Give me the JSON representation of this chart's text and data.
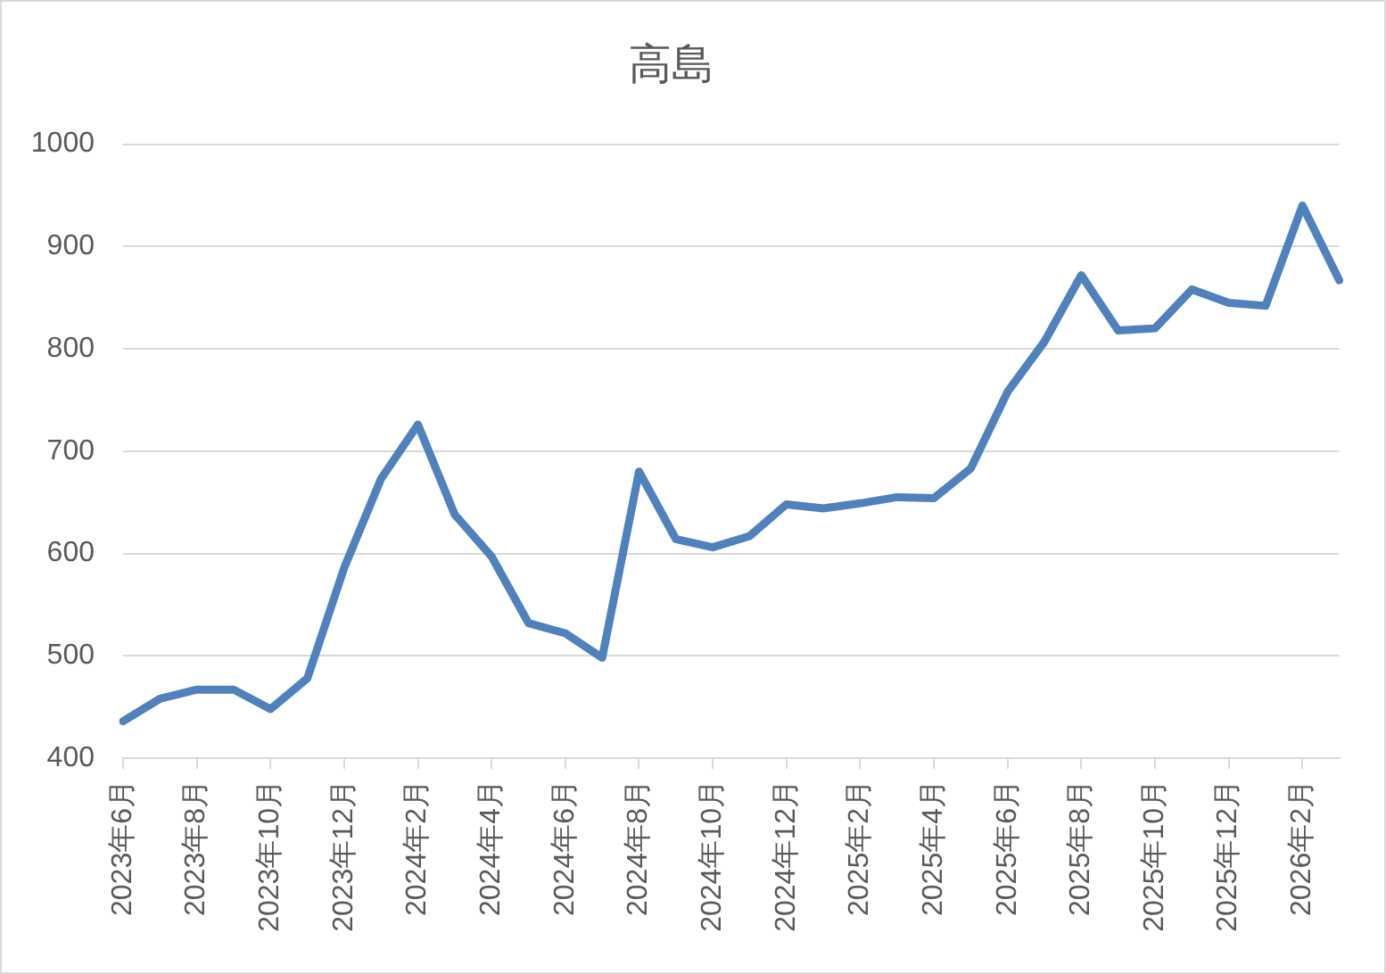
{
  "chart_data": {
    "type": "line",
    "title": "高島",
    "categories": [
      "2023年6月",
      null,
      "2023年8月",
      null,
      "2023年10月",
      null,
      "2023年12月",
      null,
      "2024年2月",
      null,
      "2024年4月",
      null,
      "2024年6月",
      null,
      "2024年8月",
      null,
      "2024年10月",
      null,
      "2024年12月",
      null,
      "2025年2月",
      null,
      "2025年4月",
      null,
      "2025年6月",
      null,
      "2025年8月",
      null,
      "2025年10月",
      null,
      "2025年12月",
      null,
      "2026年2月",
      null
    ],
    "values": [
      436,
      458,
      467,
      467,
      448,
      478,
      586,
      673,
      726,
      638,
      597,
      532,
      522,
      498,
      680,
      614,
      606,
      617,
      648,
      644,
      649,
      655,
      654,
      683,
      758,
      807,
      872,
      818,
      820,
      858,
      845,
      842,
      940,
      867
    ],
    "color": "#4f81bd",
    "ylim": [
      400,
      1000
    ],
    "yticks": [
      400,
      500,
      600,
      700,
      800,
      900,
      1000
    ],
    "grid": "y",
    "marker": "none"
  }
}
